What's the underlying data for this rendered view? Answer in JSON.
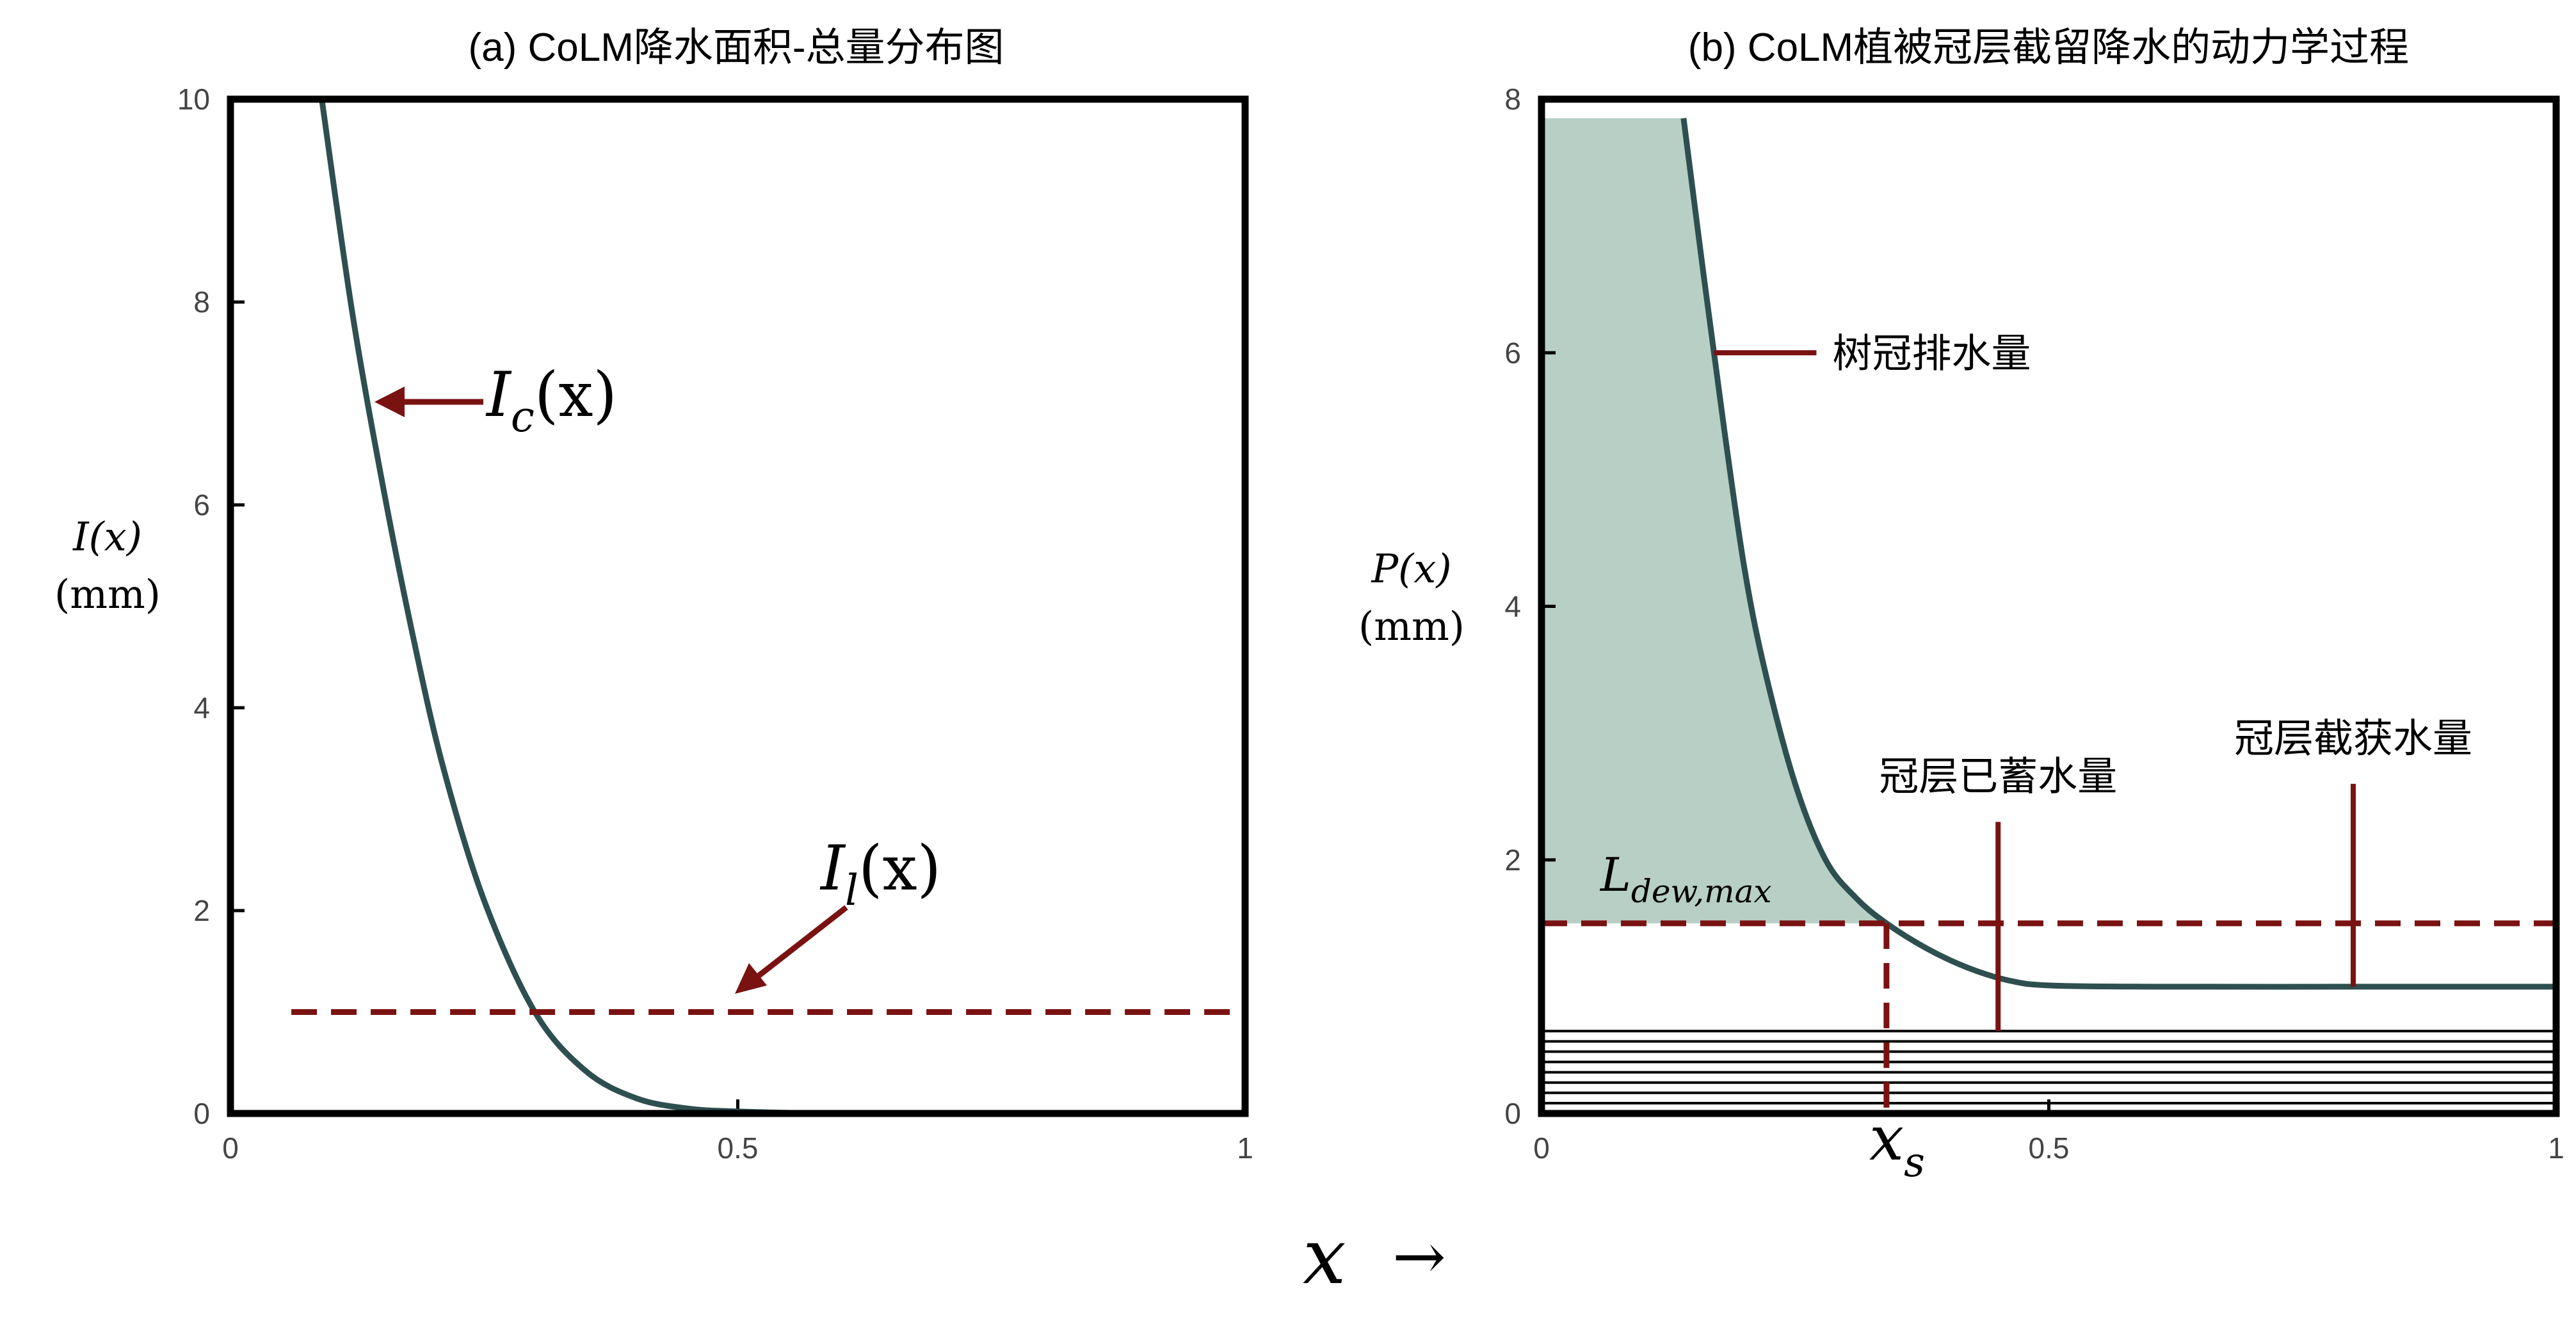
{
  "chart_data": [
    {
      "type": "line",
      "title": "(a) CoLM降水面积-总量分布图",
      "ylabel_var": "I(x)",
      "ylabel_unit": "(mm)",
      "xlim": [
        0,
        1
      ],
      "ylim": [
        0,
        10
      ],
      "xticks": [
        "0",
        "0.5",
        "1"
      ],
      "yticks": [
        "0",
        "2",
        "4",
        "6",
        "8",
        "10"
      ],
      "grid": false,
      "series": [
        {
          "name": "I_c(x)",
          "label": "I",
          "sub": "c",
          "arg": "(x)",
          "style": "solid",
          "color": "#2e4f4f",
          "x": [
            0.09,
            0.12,
            0.15,
            0.18,
            0.21,
            0.25,
            0.3,
            0.35,
            0.4,
            0.45,
            0.5,
            0.6,
            0.75,
            1.0
          ],
          "y": [
            10.0,
            7.9,
            6.2,
            4.7,
            3.4,
            2.1,
            1.0,
            0.42,
            0.15,
            0.05,
            0.02,
            0.0,
            0.0,
            0.0
          ]
        },
        {
          "name": "I_l(x)",
          "label": "I",
          "sub": "l",
          "arg": "(x)",
          "style": "dashed",
          "color": "#7a1212",
          "x": [
            0.06,
            1.0
          ],
          "y": [
            1.0,
            1.0
          ]
        }
      ]
    },
    {
      "type": "area",
      "title": "(b) CoLM植被冠层截留降水的动力学过程",
      "ylabel_var": "P(x)",
      "ylabel_unit": "(mm)",
      "xlim": [
        0,
        1
      ],
      "ylim": [
        0,
        8
      ],
      "xticks": [
        "0",
        "0.5",
        "1"
      ],
      "yticks": [
        "0",
        "2",
        "4",
        "6",
        "8"
      ],
      "grid": false,
      "series": [
        {
          "name": "P(x)",
          "style": "solid",
          "color": "#2e4f4f",
          "x": [
            0.14,
            0.16,
            0.18,
            0.2,
            0.22,
            0.25,
            0.28,
            0.31,
            0.34,
            0.38,
            0.42,
            0.46,
            0.5,
            0.6,
            0.8,
            1.0
          ],
          "y": [
            7.85,
            6.6,
            5.4,
            4.3,
            3.5,
            2.6,
            2.0,
            1.7,
            1.5,
            1.3,
            1.15,
            1.05,
            1.01,
            1.0,
            1.0,
            1.0
          ]
        }
      ],
      "shaded_region": {
        "color": "#b7cfc4",
        "y_top": 7.85,
        "y_bottom": 1.5,
        "x_start": 0.0
      },
      "threshold": {
        "label": "L",
        "sub": "dew,max",
        "y": 1.5
      },
      "xs_marker": {
        "label": "x",
        "sub": "s",
        "x": 0.34
      },
      "hatch": {
        "y_top": 0.65,
        "y_bottom": 0.0,
        "lines": 8
      },
      "annotations": [
        {
          "text": "树冠排水量",
          "x": 0.17,
          "y": 6.0
        },
        {
          "text": "冠层已蓄水量",
          "x": 0.45,
          "y_from": 0.65,
          "y_to": 2.3
        },
        {
          "text": "冠层截获水量",
          "x": 0.8,
          "y_from": 1.0,
          "y_to": 2.6
        }
      ]
    }
  ],
  "shared_xlabel": "x",
  "shared_xlabel_arrow": "→"
}
